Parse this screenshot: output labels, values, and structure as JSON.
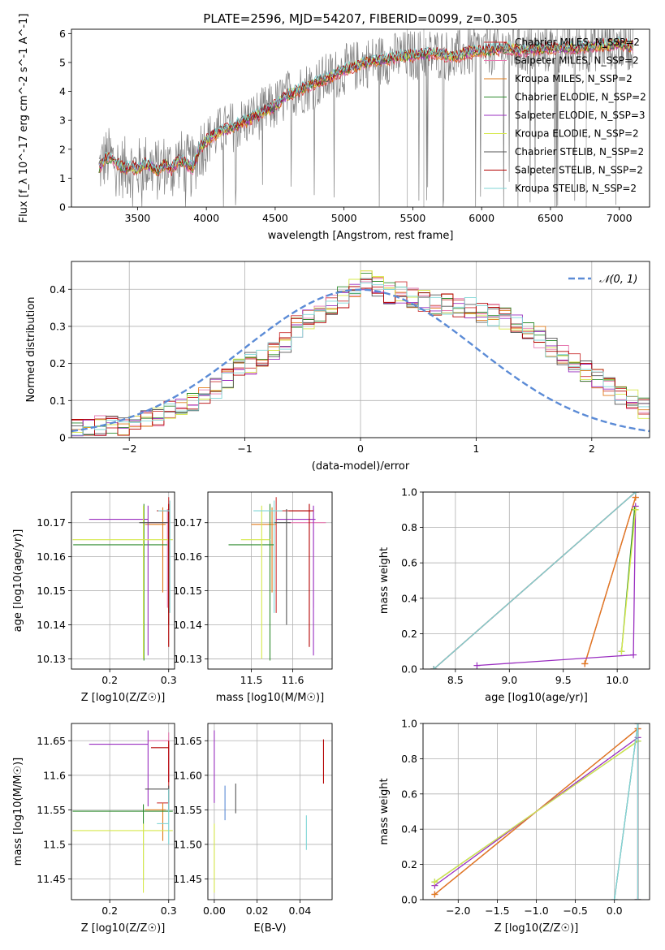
{
  "figure_title": "PLATE=2596, MJD=54207, FIBERID=0099, z=0.305",
  "colors": {
    "Chabrier MILES": "#cc3333",
    "Salpeter MILES": "#e67ab0",
    "Kroupa MILES": "#e07b1a",
    "Chabrier ELODIE": "#2e8b2e",
    "Salpeter ELODIE": "#9a2fc0",
    "Kroupa ELODIE": "#d6e84a",
    "Chabrier STELIB": "#555555",
    "Salpeter STELIB": "#b30000",
    "Kroupa STELIB": "#7fd6d6",
    "data": "#808080",
    "gaussian": "#5b8bd6"
  },
  "chart_data": [
    {
      "id": "spectrum",
      "type": "line",
      "title": "PLATE=2596, MJD=54207, FIBERID=0099, z=0.305",
      "xlabel": "wavelength [Angstrom, rest frame]",
      "ylabel": "Flux [f_λ 10^-17 erg cm^-2 s^-1 A^-1]",
      "xlim": [
        3020,
        7220
      ],
      "ylim": [
        0,
        6.15
      ],
      "xticks": [
        3500,
        4000,
        4500,
        5000,
        5500,
        6000,
        6500,
        7000
      ],
      "yticks": [
        0,
        1,
        2,
        3,
        4,
        5,
        6
      ],
      "grid": false,
      "legend_position": "top-right",
      "legend": [
        {
          "label": "Chabrier MILES, N_SSP=2",
          "key": "Chabrier MILES"
        },
        {
          "label": "Salpeter MILES, N_SSP=2",
          "key": "Salpeter MILES"
        },
        {
          "label": "Kroupa MILES, N_SSP=2",
          "key": "Kroupa MILES"
        },
        {
          "label": "Chabrier ELODIE, N_SSP=2",
          "key": "Chabrier ELODIE"
        },
        {
          "label": "Salpeter ELODIE, N_SSP=3",
          "key": "Salpeter ELODIE"
        },
        {
          "label": "Kroupa ELODIE, N_SSP=2",
          "key": "Kroupa ELODIE"
        },
        {
          "label": "Chabrier STELIB, N_SSP=2",
          "key": "Chabrier STELIB"
        },
        {
          "label": "Salpeter STELIB, N_SSP=2",
          "key": "Salpeter STELIB"
        },
        {
          "label": "Kroupa STELIB, N_SSP=2",
          "key": "Kroupa STELIB"
        }
      ],
      "model_shape": {
        "x": [
          3220,
          3260,
          3300,
          3350,
          3400,
          3450,
          3500,
          3550,
          3600,
          3650,
          3700,
          3750,
          3800,
          3850,
          3900,
          3950,
          4000,
          4100,
          4200,
          4300,
          4400,
          4500,
          4600,
          4700,
          4800,
          4900,
          5000,
          5100,
          5200,
          5300,
          5400,
          5500,
          5600,
          5700,
          5800,
          5900,
          6000,
          6100,
          6200,
          6300,
          6400,
          6500,
          6600,
          6700,
          6800,
          6900,
          7000,
          7100
        ],
        "y": [
          1.35,
          1.65,
          1.7,
          1.5,
          1.35,
          1.4,
          1.3,
          1.5,
          1.4,
          1.25,
          1.5,
          1.3,
          1.65,
          1.5,
          1.35,
          2.0,
          2.3,
          2.6,
          2.8,
          3.0,
          3.25,
          3.5,
          3.9,
          4.1,
          4.3,
          4.5,
          4.75,
          4.9,
          5.05,
          5.1,
          5.2,
          5.25,
          5.3,
          5.3,
          5.2,
          5.35,
          5.4,
          5.45,
          5.5,
          5.4,
          5.45,
          5.5,
          5.5,
          5.5,
          5.55,
          5.6,
          5.65,
          5.55
        ]
      },
      "data_noise": "high"
    },
    {
      "id": "residuals",
      "type": "histogram",
      "xlabel": "(data-model)/error",
      "ylabel": "Normed distribution",
      "xlim": [
        -2.5,
        2.5
      ],
      "ylim": [
        0,
        0.475
      ],
      "xticks": [
        -2,
        -1,
        0,
        1,
        2
      ],
      "yticks": [
        0.0,
        0.1,
        0.2,
        0.3,
        0.4
      ],
      "grid": true,
      "legend_position": "top-right",
      "legend": [
        {
          "label": "𝒩(0, 1)",
          "key": "gaussian"
        }
      ],
      "bin_edges_start": -2.5,
      "bin_width": 0.1,
      "base_values": [
        0.025,
        0.025,
        0.03,
        0.035,
        0.035,
        0.05,
        0.055,
        0.06,
        0.07,
        0.09,
        0.1,
        0.12,
        0.13,
        0.16,
        0.19,
        0.2,
        0.22,
        0.24,
        0.26,
        0.3,
        0.32,
        0.34,
        0.36,
        0.38,
        0.4,
        0.42,
        0.41,
        0.39,
        0.39,
        0.38,
        0.37,
        0.36,
        0.36,
        0.35,
        0.35,
        0.34,
        0.33,
        0.32,
        0.31,
        0.29,
        0.27,
        0.24,
        0.22,
        0.2,
        0.18,
        0.16,
        0.14,
        0.12,
        0.1,
        0.08
      ]
    },
    {
      "id": "age-vs-Z",
      "type": "errorbar",
      "xlabel": "Z [log10(Z/Z☉)]",
      "ylabel": "age [log10(age/yr)]",
      "xlim": [
        0.135,
        0.31
      ],
      "ylim": [
        10.127,
        10.179
      ],
      "xticks": [
        0.2,
        0.3
      ],
      "yticks": [
        10.13,
        10.14,
        10.15,
        10.16,
        10.17
      ],
      "grid": true,
      "points": [
        {
          "key": "Chabrier MILES",
          "x": 0.3,
          "y": 10.1735,
          "x_err": [
            0.015,
            0.0
          ],
          "y_err": [
            0.03,
            0.004
          ]
        },
        {
          "key": "Salpeter MILES",
          "x": 0.298,
          "y": 10.17,
          "x_err": [
            0.035,
            0.0
          ],
          "y_err": [
            0.025,
            0.004
          ]
        },
        {
          "key": "Kroupa MILES",
          "x": 0.29,
          "y": 10.1695,
          "x_err": [
            0.03,
            0.005
          ],
          "y_err": [
            0.02,
            0.005
          ]
        },
        {
          "key": "Chabrier ELODIE",
          "x": 0.258,
          "y": 10.1635,
          "x_err": [
            0.12,
            0.04
          ],
          "y_err": [
            0.034,
            0.012
          ]
        },
        {
          "key": "Salpeter ELODIE",
          "x": 0.265,
          "y": 10.171,
          "x_err": [
            0.1,
            0.0
          ],
          "y_err": [
            0.04,
            0.004
          ]
        },
        {
          "key": "Kroupa ELODIE",
          "x": 0.257,
          "y": 10.165,
          "x_err": [
            0.12,
            0.05
          ],
          "y_err": [
            0.035,
            0.01
          ]
        },
        {
          "key": "Chabrier STELIB",
          "x": 0.3,
          "y": 10.17,
          "x_err": [
            0.05,
            0.0
          ],
          "y_err": [
            0.03,
            0.004
          ]
        },
        {
          "key": "Salpeter STELIB",
          "x": 0.3,
          "y": 10.1735,
          "x_err": [
            0.02,
            0.0
          ],
          "y_err": [
            0.04,
            0.002
          ]
        },
        {
          "key": "Kroupa STELIB",
          "x": 0.302,
          "y": 10.1735,
          "x_err": [
            0.02,
            0.0
          ],
          "y_err": [
            0.03,
            0.003
          ]
        }
      ]
    },
    {
      "id": "age-vs-mass",
      "type": "errorbar",
      "xlabel": "mass [log10(M/M☉)]",
      "ylabel": "",
      "xlim": [
        11.395,
        11.695
      ],
      "ylim": [
        10.127,
        10.179
      ],
      "xticks": [
        11.5,
        11.6
      ],
      "yticks": [
        10.13,
        10.14,
        10.15,
        10.16,
        10.17
      ],
      "grid": true,
      "points": [
        {
          "key": "Chabrier MILES",
          "x": 11.56,
          "y": 10.1735,
          "x_err": [
            0.0,
            0.085
          ],
          "y_err": [
            0.03,
            0.004
          ]
        },
        {
          "key": "Salpeter MILES",
          "x": 11.65,
          "y": 10.17,
          "x_err": [
            0.06,
            0.03
          ],
          "y_err": [
            0.025,
            0.004
          ]
        },
        {
          "key": "Kroupa MILES",
          "x": 11.55,
          "y": 10.1695,
          "x_err": [
            0.05,
            0.01
          ],
          "y_err": [
            0.02,
            0.005
          ]
        },
        {
          "key": "Chabrier ELODIE",
          "x": 11.545,
          "y": 10.1635,
          "x_err": [
            0.1,
            0.01
          ],
          "y_err": [
            0.034,
            0.012
          ]
        },
        {
          "key": "Salpeter ELODIE",
          "x": 11.65,
          "y": 10.171,
          "x_err": [
            0.09,
            0.005
          ],
          "y_err": [
            0.04,
            0.004
          ]
        },
        {
          "key": "Kroupa ELODIE",
          "x": 11.525,
          "y": 10.165,
          "x_err": [
            0.05,
            0.02
          ],
          "y_err": [
            0.035,
            0.01
          ]
        },
        {
          "key": "Chabrier STELIB",
          "x": 11.585,
          "y": 10.17,
          "x_err": [
            0.03,
            0.01
          ],
          "y_err": [
            0.03,
            0.004
          ]
        },
        {
          "key": "Salpeter STELIB",
          "x": 11.64,
          "y": 10.1735,
          "x_err": [
            0.05,
            0.01
          ],
          "y_err": [
            0.04,
            0.002
          ]
        },
        {
          "key": "Kroupa STELIB",
          "x": 11.555,
          "y": 10.1735,
          "x_err": [
            0.05,
            0.02
          ],
          "y_err": [
            0.03,
            0.003
          ]
        }
      ]
    },
    {
      "id": "weight-vs-age",
      "type": "line",
      "xlabel": "age [log10(age/yr)]",
      "ylabel": "mass weight",
      "xlim": [
        8.2,
        10.3
      ],
      "ylim": [
        0,
        1.0
      ],
      "xticks": [
        8.5,
        9.0,
        9.5,
        10.0
      ],
      "yticks": [
        0.0,
        0.2,
        0.4,
        0.6,
        0.8,
        1.0
      ],
      "grid": true,
      "series": [
        {
          "key": "Chabrier MILES",
          "x": [
            9.7,
            10.17
          ],
          "y": [
            0.03,
            0.97
          ]
        },
        {
          "key": "Salpeter MILES",
          "x": [
            9.7,
            10.17
          ],
          "y": [
            0.03,
            0.97
          ]
        },
        {
          "key": "Kroupa MILES",
          "x": [
            9.7,
            10.17
          ],
          "y": [
            0.03,
            0.97
          ]
        },
        {
          "key": "Chabrier ELODIE",
          "x": [
            10.04,
            10.16
          ],
          "y": [
            0.1,
            0.9
          ]
        },
        {
          "key": "Salpeter ELODIE",
          "x": [
            8.7,
            10.15,
            10.17
          ],
          "y": [
            0.02,
            0.08,
            0.92
          ]
        },
        {
          "key": "Kroupa ELODIE",
          "x": [
            10.04,
            10.17
          ],
          "y": [
            0.1,
            0.9
          ]
        },
        {
          "key": "Chabrier STELIB",
          "x": [
            8.3,
            10.17
          ],
          "y": [
            0.0,
            1.0
          ]
        },
        {
          "key": "Salpeter STELIB",
          "x": [
            8.3,
            10.17
          ],
          "y": [
            0.0,
            1.0
          ]
        },
        {
          "key": "Kroupa STELIB",
          "x": [
            8.3,
            10.17
          ],
          "y": [
            0.0,
            1.0
          ]
        }
      ]
    },
    {
      "id": "mass-vs-Z",
      "type": "errorbar",
      "xlabel": "Z [log10(Z/Z☉)]",
      "ylabel": "mass [log10(M/M☉)]",
      "xlim": [
        0.135,
        0.31
      ],
      "ylim": [
        11.42,
        11.675
      ],
      "xticks": [
        0.2,
        0.3
      ],
      "yticks": [
        11.45,
        11.5,
        11.55,
        11.6,
        11.65
      ],
      "grid": true,
      "points": [
        {
          "key": "Chabrier MILES",
          "x": 0.3,
          "y": 11.56,
          "x_err": [
            0.02,
            0.0
          ],
          "y_err": [
            0.0,
            0.085
          ]
        },
        {
          "key": "Salpeter MILES",
          "x": 0.3,
          "y": 11.65,
          "x_err": [
            0.035,
            0.0
          ],
          "y_err": [
            0.06,
            0.012
          ]
        },
        {
          "key": "Kroupa MILES",
          "x": 0.29,
          "y": 11.55,
          "x_err": [
            0.03,
            0.005
          ],
          "y_err": [
            0.045,
            0.01
          ]
        },
        {
          "key": "Chabrier ELODIE",
          "x": 0.257,
          "y": 11.548,
          "x_err": [
            0.12,
            0.05
          ],
          "y_err": [
            0.1,
            0.01
          ]
        },
        {
          "key": "Salpeter ELODIE",
          "x": 0.265,
          "y": 11.645,
          "x_err": [
            0.1,
            0.0
          ],
          "y_err": [
            0.09,
            0.02
          ]
        },
        {
          "key": "Kroupa ELODIE",
          "x": 0.257,
          "y": 11.52,
          "x_err": [
            0.12,
            0.05
          ],
          "y_err": [
            0.09,
            0.01
          ]
        },
        {
          "key": "Chabrier STELIB",
          "x": 0.3,
          "y": 11.58,
          "x_err": [
            0.04,
            0.0
          ],
          "y_err": [
            0.03,
            0.005
          ]
        },
        {
          "key": "Salpeter STELIB",
          "x": 0.3,
          "y": 11.64,
          "x_err": [
            0.03,
            0.0
          ],
          "y_err": [
            0.05,
            0.01
          ]
        },
        {
          "key": "Kroupa STELIB",
          "x": 0.3,
          "y": 11.53,
          "x_err": [
            0.02,
            0.0
          ],
          "y_err": [
            0.03,
            0.05
          ]
        }
      ]
    },
    {
      "id": "mass-vs-EBV",
      "type": "errorbar",
      "xlabel": "E(B-V)",
      "ylabel": "",
      "xlim": [
        -0.003,
        0.055
      ],
      "ylim": [
        11.42,
        11.675
      ],
      "xticks": [
        0.0,
        0.02,
        0.04
      ],
      "yticks": [
        11.45,
        11.5,
        11.55,
        11.6,
        11.65
      ],
      "grid": true,
      "points": [
        {
          "key": "Salpeter ELODIE",
          "x": 0.0,
          "y": 11.6,
          "y_err": [
            0.04,
            0.065
          ]
        },
        {
          "key": "Kroupa ELODIE",
          "x": 0.0,
          "y": 11.48,
          "y_err": [
            0.05,
            0.05
          ]
        },
        {
          "key": "gaussian",
          "x": 0.005,
          "y": 11.56,
          "y_err": [
            0.025,
            0.025
          ]
        },
        {
          "key": "Chabrier STELIB",
          "x": 0.01,
          "y": 11.565,
          "y_err": [
            0.02,
            0.023
          ]
        },
        {
          "key": "Kroupa STELIB",
          "x": 0.043,
          "y": 11.515,
          "y_err": [
            0.023,
            0.027
          ]
        },
        {
          "key": "Salpeter STELIB",
          "x": 0.051,
          "y": 11.62,
          "y_err": [
            0.032,
            0.032
          ]
        }
      ]
    },
    {
      "id": "weight-vs-Z",
      "type": "line",
      "xlabel": "Z [log10(Z/Z☉)]",
      "ylabel": "mass weight",
      "xlim": [
        -2.45,
        0.45
      ],
      "ylim": [
        0,
        1.0
      ],
      "xticks": [
        -2.0,
        -1.5,
        -1.0,
        -0.5,
        0.0
      ],
      "yticks": [
        0.0,
        0.2,
        0.4,
        0.6,
        0.8,
        1.0
      ],
      "grid": true,
      "series": [
        {
          "key": "Chabrier MILES",
          "x": [
            -2.3,
            0.3
          ],
          "y": [
            0.03,
            0.97
          ]
        },
        {
          "key": "Salpeter MILES",
          "x": [
            -2.3,
            0.3
          ],
          "y": [
            0.03,
            0.97
          ]
        },
        {
          "key": "Kroupa MILES",
          "x": [
            -2.3,
            0.3
          ],
          "y": [
            0.03,
            0.97
          ]
        },
        {
          "key": "Chabrier ELODIE",
          "x": [
            -2.3,
            0.3
          ],
          "y": [
            0.1,
            0.9
          ]
        },
        {
          "key": "Salpeter ELODIE",
          "x": [
            -2.3,
            0.3,
            0.3
          ],
          "y": [
            0.08,
            0.92,
            0.0
          ]
        },
        {
          "key": "Kroupa ELODIE",
          "x": [
            -2.3,
            0.3
          ],
          "y": [
            0.1,
            0.9
          ]
        },
        {
          "key": "Chabrier STELIB",
          "x": [
            0.0,
            0.3,
            0.3
          ],
          "y": [
            0.0,
            1.0,
            0.0
          ]
        },
        {
          "key": "Salpeter STELIB",
          "x": [
            0.3,
            0.3
          ],
          "y": [
            0.0,
            1.0
          ]
        },
        {
          "key": "Kroupa STELIB",
          "x": [
            0.0,
            0.3,
            0.3
          ],
          "y": [
            0.0,
            1.0,
            0.0
          ]
        }
      ]
    }
  ]
}
